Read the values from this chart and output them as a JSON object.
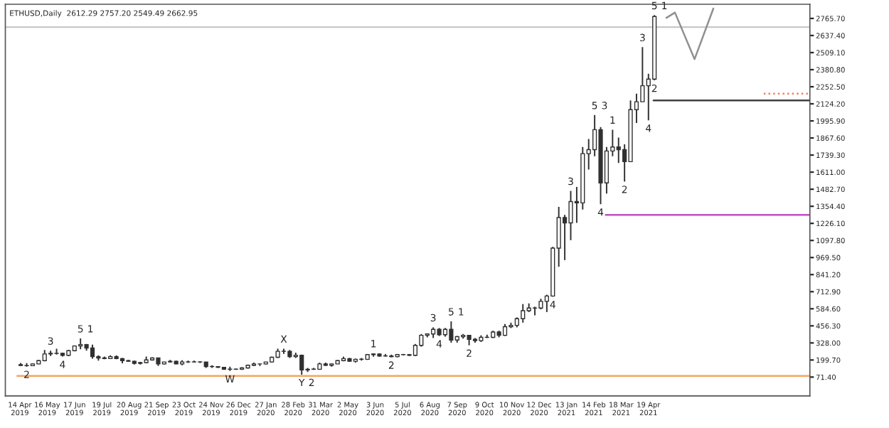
{
  "chart_data": {
    "type": "candlestick",
    "title": "ETHUSD,Daily  2612.29 2757.20 2549.49 2662.95",
    "color": "#303030",
    "x": [
      "2019-04-15",
      "2019-04-22",
      "2019-04-29",
      "2019-05-06",
      "2019-05-13",
      "2019-05-20",
      "2019-05-27",
      "2019-06-03",
      "2019-06-10",
      "2019-06-17",
      "2019-06-24",
      "2019-07-01",
      "2019-07-08",
      "2019-07-15",
      "2019-07-22",
      "2019-07-29",
      "2019-08-05",
      "2019-08-12",
      "2019-08-19",
      "2019-08-26",
      "2019-09-02",
      "2019-09-09",
      "2019-09-16",
      "2019-09-23",
      "2019-09-30",
      "2019-10-07",
      "2019-10-14",
      "2019-10-21",
      "2019-10-28",
      "2019-11-04",
      "2019-11-11",
      "2019-11-18",
      "2019-11-25",
      "2019-12-02",
      "2019-12-09",
      "2019-12-16",
      "2019-12-23",
      "2019-12-30",
      "2020-01-06",
      "2020-01-13",
      "2020-01-20",
      "2020-01-27",
      "2020-02-03",
      "2020-02-10",
      "2020-02-17",
      "2020-02-24",
      "2020-03-02",
      "2020-03-09",
      "2020-03-16",
      "2020-03-23",
      "2020-03-30",
      "2020-04-06",
      "2020-04-13",
      "2020-04-20",
      "2020-04-27",
      "2020-05-04",
      "2020-05-11",
      "2020-05-18",
      "2020-05-25",
      "2020-06-01",
      "2020-06-08",
      "2020-06-15",
      "2020-06-22",
      "2020-06-29",
      "2020-07-06",
      "2020-07-13",
      "2020-07-20",
      "2020-07-27",
      "2020-08-03",
      "2020-08-10",
      "2020-08-17",
      "2020-08-24",
      "2020-08-31",
      "2020-09-07",
      "2020-09-14",
      "2020-09-21",
      "2020-09-28",
      "2020-10-05",
      "2020-10-12",
      "2020-10-19",
      "2020-10-26",
      "2020-11-02",
      "2020-11-09",
      "2020-11-16",
      "2020-11-23",
      "2020-11-30",
      "2020-12-07",
      "2020-12-14",
      "2020-12-21",
      "2020-12-28",
      "2021-01-04",
      "2021-01-11",
      "2021-01-18",
      "2021-01-25",
      "2021-02-01",
      "2021-02-08",
      "2021-02-15",
      "2021-02-22",
      "2021-03-01",
      "2021-03-08",
      "2021-03-15",
      "2021-03-22",
      "2021-03-29",
      "2021-04-05",
      "2021-04-12",
      "2021-04-19",
      "2021-04-26"
    ],
    "ohlc": [
      [
        165,
        178,
        158,
        158
      ],
      [
        158,
        176,
        150,
        157
      ],
      [
        157,
        175,
        153,
        170
      ],
      [
        170,
        200,
        168,
        195
      ],
      [
        195,
        275,
        190,
        245
      ],
      [
        245,
        270,
        230,
        250
      ],
      [
        250,
        285,
        240,
        250
      ],
      [
        250,
        255,
        225,
        235
      ],
      [
        235,
        275,
        230,
        270
      ],
      [
        270,
        310,
        265,
        305
      ],
      [
        305,
        362,
        280,
        315
      ],
      [
        315,
        320,
        270,
        290
      ],
      [
        290,
        315,
        210,
        225
      ],
      [
        225,
        235,
        195,
        215
      ],
      [
        215,
        225,
        205,
        210
      ],
      [
        210,
        235,
        210,
        225
      ],
      [
        225,
        235,
        205,
        210
      ],
      [
        210,
        215,
        175,
        195
      ],
      [
        195,
        200,
        185,
        190
      ],
      [
        190,
        195,
        165,
        175
      ],
      [
        175,
        185,
        165,
        180
      ],
      [
        180,
        225,
        175,
        200
      ],
      [
        200,
        220,
        195,
        215
      ],
      [
        215,
        215,
        155,
        170
      ],
      [
        170,
        185,
        165,
        185
      ],
      [
        185,
        200,
        180,
        190
      ],
      [
        190,
        195,
        168,
        170
      ],
      [
        170,
        198,
        160,
        185
      ],
      [
        185,
        195,
        178,
        185
      ],
      [
        185,
        195,
        182,
        185
      ],
      [
        185,
        190,
        178,
        185
      ],
      [
        185,
        185,
        140,
        150
      ],
      [
        150,
        160,
        140,
        150
      ],
      [
        150,
        152,
        140,
        145
      ],
      [
        145,
        148,
        125,
        130
      ],
      [
        130,
        150,
        117,
        130
      ],
      [
        130,
        135,
        125,
        130
      ],
      [
        130,
        145,
        125,
        140
      ],
      [
        140,
        165,
        135,
        160
      ],
      [
        160,
        180,
        155,
        170
      ],
      [
        170,
        172,
        155,
        170
      ],
      [
        170,
        185,
        165,
        185
      ],
      [
        185,
        225,
        180,
        220
      ],
      [
        220,
        285,
        215,
        265
      ],
      [
        265,
        285,
        245,
        265
      ],
      [
        265,
        275,
        215,
        225
      ],
      [
        225,
        255,
        215,
        235
      ],
      [
        235,
        240,
        90,
        125
      ],
      [
        125,
        140,
        110,
        130
      ],
      [
        130,
        140,
        125,
        130
      ],
      [
        130,
        180,
        125,
        170
      ],
      [
        170,
        180,
        155,
        160
      ],
      [
        160,
        175,
        150,
        170
      ],
      [
        170,
        200,
        170,
        195
      ],
      [
        195,
        225,
        190,
        210
      ],
      [
        210,
        215,
        185,
        190
      ],
      [
        190,
        210,
        180,
        205
      ],
      [
        205,
        215,
        195,
        205
      ],
      [
        205,
        245,
        200,
        240
      ],
      [
        240,
        250,
        225,
        245
      ],
      [
        245,
        250,
        225,
        230
      ],
      [
        230,
        245,
        225,
        230
      ],
      [
        230,
        240,
        220,
        225
      ],
      [
        225,
        245,
        220,
        240
      ],
      [
        240,
        245,
        235,
        240
      ],
      [
        240,
        245,
        230,
        235
      ],
      [
        235,
        320,
        230,
        310
      ],
      [
        310,
        395,
        300,
        385
      ],
      [
        385,
        400,
        370,
        395
      ],
      [
        395,
        445,
        365,
        430
      ],
      [
        430,
        440,
        380,
        390
      ],
      [
        390,
        440,
        375,
        430
      ],
      [
        430,
        490,
        330,
        350
      ],
      [
        350,
        380,
        330,
        375
      ],
      [
        375,
        395,
        360,
        385
      ],
      [
        385,
        385,
        310,
        355
      ],
      [
        355,
        365,
        330,
        345
      ],
      [
        345,
        385,
        335,
        370
      ],
      [
        370,
        390,
        365,
        370
      ],
      [
        370,
        420,
        365,
        410
      ],
      [
        410,
        420,
        370,
        385
      ],
      [
        385,
        470,
        380,
        450
      ],
      [
        450,
        480,
        440,
        460
      ],
      [
        460,
        520,
        445,
        510
      ],
      [
        510,
        620,
        480,
        570
      ],
      [
        570,
        625,
        560,
        590
      ],
      [
        590,
        600,
        535,
        590
      ],
      [
        590,
        660,
        580,
        640
      ],
      [
        640,
        690,
        560,
        680
      ],
      [
        680,
        1050,
        675,
        1040
      ],
      [
        1040,
        1350,
        900,
        1270
      ],
      [
        1270,
        1290,
        950,
        1230
      ],
      [
        1230,
        1470,
        1100,
        1390
      ],
      [
        1390,
        1500,
        1230,
        1380
      ],
      [
        1380,
        1800,
        1330,
        1750
      ],
      [
        1750,
        1860,
        1630,
        1780
      ],
      [
        1780,
        2040,
        1730,
        1930
      ],
      [
        1930,
        1950,
        1370,
        1530
      ],
      [
        1530,
        1800,
        1450,
        1770
      ],
      [
        1770,
        1930,
        1730,
        1800
      ],
      [
        1800,
        1870,
        1680,
        1780
      ],
      [
        1780,
        1820,
        1540,
        1690
      ],
      [
        1690,
        2150,
        1690,
        2080
      ],
      [
        2080,
        2200,
        1980,
        2140
      ],
      [
        2140,
        2550,
        2140,
        2260
      ],
      [
        2260,
        2350,
        2000,
        2310
      ],
      [
        2310,
        2790,
        2300,
        2780
      ]
    ],
    "series": [
      {
        "type": "line",
        "x": [
          "2019-04-11",
          "2021-10-25"
        ],
        "values": [
          80,
          80
        ],
        "color": "#f4a460",
        "line_style": "solid"
      },
      {
        "type": "line",
        "x": [
          "2021-02-28",
          "2021-10-25"
        ],
        "values": [
          1290,
          1290
        ],
        "color": "#c050c0",
        "line_style": "solid"
      },
      {
        "type": "line",
        "x": [
          "2021-04-25",
          "2021-10-25"
        ],
        "values": [
          2150,
          2150
        ],
        "color": "#404040",
        "line_style": "solid"
      },
      {
        "type": "line",
        "x": [
          "2021-09-01",
          "2021-10-25"
        ],
        "values": [
          2200,
          2200
        ],
        "color": "#f08060",
        "line_style": "dotted"
      },
      {
        "type": "line",
        "x": [
          "2021-05-10",
          "2021-05-20",
          "2021-06-12",
          "2021-07-04"
        ],
        "values": [
          2770,
          2810,
          2460,
          2840
        ],
        "color": "#909090",
        "line_style": "solid"
      }
    ],
    "ref_lines": [
      {
        "axis": "y",
        "value": 2700,
        "color": "#c8c8c8",
        "line_style": "solid"
      }
    ],
    "annotations": [
      {
        "text": "2",
        "x": "2019-04-22",
        "y": 150
      },
      {
        "text": "3",
        "x": "2019-05-20",
        "y": 270
      },
      {
        "text": "4",
        "x": "2019-06-03",
        "y": 225
      },
      {
        "text": "5",
        "x": "2019-06-24",
        "y": 362
      },
      {
        "text": "1",
        "x": "2019-06-24",
        "y": 362
      },
      {
        "text": "W",
        "x": "2019-12-16",
        "y": 117
      },
      {
        "text": "X",
        "x": "2020-02-17",
        "y": 285
      },
      {
        "text": "Y",
        "x": "2020-03-09",
        "y": 90
      },
      {
        "text": "2",
        "x": "2020-03-09",
        "y": 90
      },
      {
        "text": "1",
        "x": "2020-06-01",
        "y": 250
      },
      {
        "text": "2",
        "x": "2020-06-22",
        "y": 220
      },
      {
        "text": "3",
        "x": "2020-08-10",
        "y": 445
      },
      {
        "text": "4",
        "x": "2020-08-17",
        "y": 380
      },
      {
        "text": "5",
        "x": "2020-08-31",
        "y": 490
      },
      {
        "text": "1",
        "x": "2020-08-31",
        "y": 490
      },
      {
        "text": "2",
        "x": "2020-09-21",
        "y": 310
      },
      {
        "text": "3",
        "x": "2021-01-18",
        "y": 1470
      },
      {
        "text": "4",
        "x": "2020-12-28",
        "y": 675
      },
      {
        "text": "5",
        "x": "2021-02-15",
        "y": 2040
      },
      {
        "text": "3",
        "x": "2021-02-15",
        "y": 2040
      },
      {
        "text": "4",
        "x": "2021-02-22",
        "y": 1370
      },
      {
        "text": "1",
        "x": "2021-03-08",
        "y": 1930
      },
      {
        "text": "2",
        "x": "2021-03-22",
        "y": 1540
      },
      {
        "text": "3",
        "x": "2021-04-12",
        "y": 2550
      },
      {
        "text": "4",
        "x": "2021-04-19",
        "y": 2000
      },
      {
        "text": "2",
        "x": "2021-04-26",
        "y": 2300
      },
      {
        "text": "5",
        "x": "2021-04-26",
        "y": 2790
      },
      {
        "text": "1",
        "x": "2021-04-26",
        "y": 2790
      }
    ],
    "xlim": [
      "2019-03-28",
      "2021-10-25"
    ],
    "xticks": [
      {
        "value": "2019-04-14",
        "label": "14 Apr 2019"
      },
      {
        "value": "2019-05-16",
        "label": "16 May 2019"
      },
      {
        "value": "2019-06-17",
        "label": "17 Jun 2019"
      },
      {
        "value": "2019-07-19",
        "label": "19 Jul 2019"
      },
      {
        "value": "2019-08-20",
        "label": "20 Aug 2019"
      },
      {
        "value": "2019-09-21",
        "label": "21 Sep 2019"
      },
      {
        "value": "2019-10-23",
        "label": "23 Oct 2019"
      },
      {
        "value": "2019-11-24",
        "label": "24 Nov 2019"
      },
      {
        "value": "2019-12-26",
        "label": "26 Dec 2019"
      },
      {
        "value": "2020-01-27",
        "label": "27 Jan 2020"
      },
      {
        "value": "2020-02-28",
        "label": "28 Feb 2020"
      },
      {
        "value": "2020-03-31",
        "label": "31 Mar 2020"
      },
      {
        "value": "2020-05-02",
        "label": "2 May 2020"
      },
      {
        "value": "2020-06-03",
        "label": "3 Jun 2020"
      },
      {
        "value": "2020-07-05",
        "label": "5 Jul 2020"
      },
      {
        "value": "2020-08-06",
        "label": "6 Aug 2020"
      },
      {
        "value": "2020-09-07",
        "label": "7 Sep 2020"
      },
      {
        "value": "2020-10-09",
        "label": "9 Oct 2020"
      },
      {
        "value": "2020-11-10",
        "label": "10 Nov 2020"
      },
      {
        "value": "2020-12-12",
        "label": "12 Dec 2020"
      },
      {
        "value": "2021-01-13",
        "label": "13 Jan 2021"
      },
      {
        "value": "2021-02-14",
        "label": "14 Feb 2021"
      },
      {
        "value": "2021-03-18",
        "label": "18 Mar 2021"
      },
      {
        "value": "2021-04-19",
        "label": "19 Apr 2021"
      }
    ],
    "ylim": [
      -70,
      2872
    ],
    "yticks": [
      {
        "value": 71.4,
        "label": "71.40"
      },
      {
        "value": 199.7,
        "label": "199.70"
      },
      {
        "value": 328.0,
        "label": "328.00"
      },
      {
        "value": 456.3,
        "label": "456.30"
      },
      {
        "value": 584.6,
        "label": "584.60"
      },
      {
        "value": 712.9,
        "label": "712.90"
      },
      {
        "value": 841.2,
        "label": "841.20"
      },
      {
        "value": 969.5,
        "label": "969.50"
      },
      {
        "value": 1097.8,
        "label": "1097.80"
      },
      {
        "value": 1226.1,
        "label": "1226.10"
      },
      {
        "value": 1354.4,
        "label": "1354.40"
      },
      {
        "value": 1482.7,
        "label": "1482.70"
      },
      {
        "value": 1611.0,
        "label": "1611.00"
      },
      {
        "value": 1739.3,
        "label": "1739.30"
      },
      {
        "value": 1867.6,
        "label": "1867.60"
      },
      {
        "value": 1995.9,
        "label": "1995.90"
      },
      {
        "value": 2124.2,
        "label": "2124.20"
      },
      {
        "value": 2252.5,
        "label": "2252.50"
      },
      {
        "value": 2380.8,
        "label": "2380.80"
      },
      {
        "value": 2509.1,
        "label": "2509.10"
      },
      {
        "value": 2637.4,
        "label": "2637.40"
      },
      {
        "value": 2765.7,
        "label": "2765.70"
      }
    ],
    "grid": false,
    "legend": false
  }
}
